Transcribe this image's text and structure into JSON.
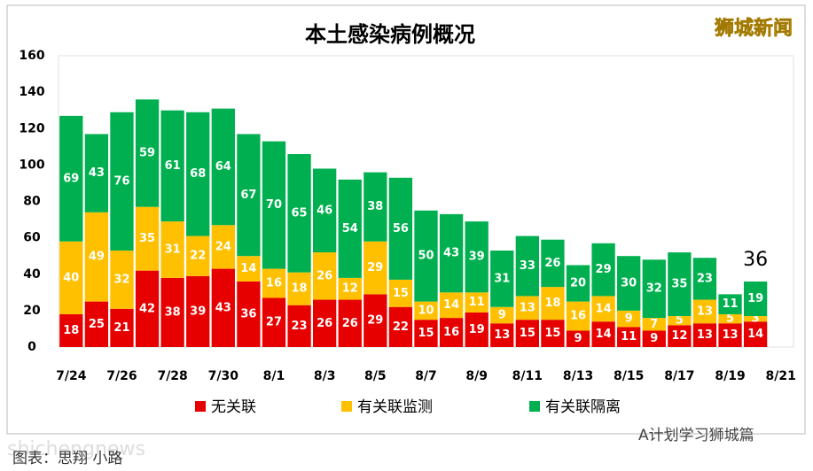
{
  "chart_data": {
    "type": "stacked_bar",
    "title": "本土感染病例概况",
    "categories": [
      "7/24",
      null,
      "7/26",
      null,
      "7/28",
      null,
      "7/30",
      null,
      "8/1",
      null,
      "8/3",
      null,
      "8/5",
      null,
      "8/7",
      null,
      "8/9",
      null,
      "8/11",
      null,
      "8/13",
      null,
      "8/15",
      null,
      "8/17",
      null,
      "8/19",
      null,
      "8/21"
    ],
    "series": [
      {
        "name": "无关联",
        "color": "#e60000",
        "values": [
          18,
          25,
          21,
          42,
          38,
          39,
          43,
          36,
          27,
          23,
          26,
          26,
          29,
          22,
          15,
          16,
          19,
          13,
          15,
          15,
          9,
          14,
          11,
          9,
          12,
          13,
          13,
          14,
          null
        ]
      },
      {
        "name": "有关联监测",
        "color": "#ffc000",
        "values": [
          40,
          49,
          32,
          35,
          31,
          22,
          24,
          14,
          16,
          18,
          26,
          12,
          29,
          15,
          10,
          14,
          11,
          9,
          13,
          18,
          16,
          14,
          9,
          7,
          5,
          13,
          5,
          3,
          null
        ]
      },
      {
        "name": "有关联隔离",
        "color": "#00b050",
        "values": [
          69,
          43,
          76,
          59,
          61,
          68,
          64,
          67,
          70,
          65,
          46,
          54,
          38,
          56,
          50,
          43,
          39,
          31,
          33,
          26,
          20,
          29,
          30,
          32,
          35,
          23,
          11,
          19,
          null
        ]
      }
    ],
    "ylim": [
      0,
      160
    ],
    "yticks": [
      0,
      20,
      40,
      60,
      80,
      100,
      120,
      140,
      160
    ],
    "grid": false,
    "legend": "bottom",
    "annotations": [
      "36"
    ]
  },
  "watermark": "狮城新闻",
  "footer": {
    "site": "shichengnews",
    "credit": "图表：思翔 小路",
    "account": "A计划学习狮城篇"
  }
}
